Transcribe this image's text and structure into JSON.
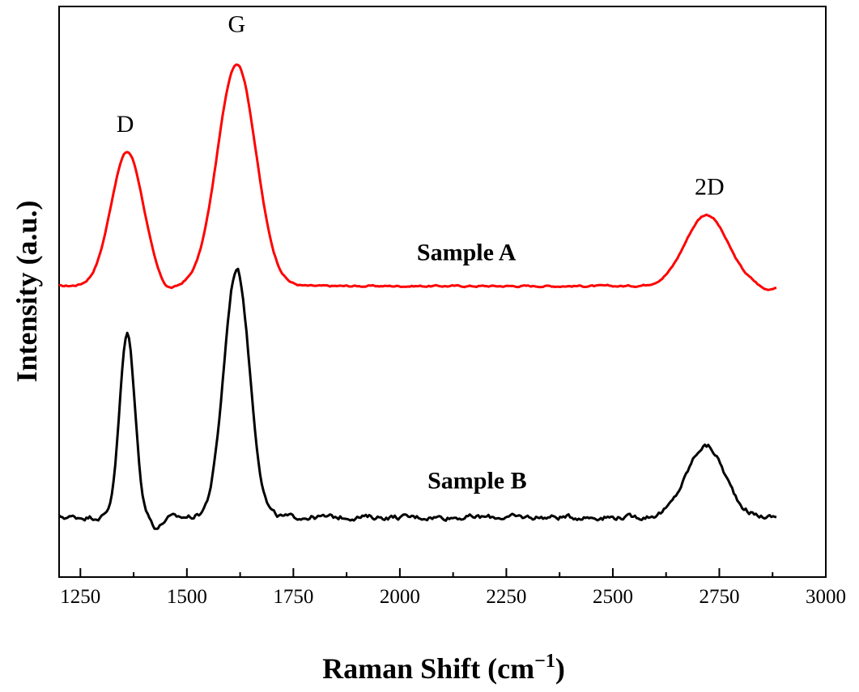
{
  "chart_data": {
    "type": "line",
    "title": "",
    "xlabel": "Raman Shift (cm",
    "xlabel_superscript": "−1",
    "xlabel_close": ")",
    "ylabel": "Intensity (a.u.)",
    "xlim": [
      1200,
      3000
    ],
    "ylim": [
      0,
      10
    ],
    "x_ticks": [
      1250,
      1500,
      1750,
      2000,
      2250,
      2500,
      2750,
      3000
    ],
    "y_ticks": [],
    "grid": false,
    "legend": "none",
    "series": [
      {
        "name": "Sample A",
        "color": "#ff0000",
        "baseline": 5.1,
        "noise": 0.03,
        "x_range": [
          1200,
          2885
        ],
        "peaks": [
          {
            "center": 1360,
            "height": 2.35,
            "width": 38
          },
          {
            "center": 1617,
            "height": 3.9,
            "width": 45
          },
          {
            "center": 2720,
            "height": 1.25,
            "width": 50
          }
        ],
        "dips": [
          {
            "center": 1450,
            "depth": 0.12,
            "width": 20
          },
          {
            "center": 2860,
            "depth": 0.08,
            "width": 15
          }
        ]
      },
      {
        "name": "Sample B",
        "color": "#000000",
        "baseline": 1.05,
        "noise": 0.09,
        "x_range": [
          1200,
          2885
        ],
        "peaks": [
          {
            "center": 1360,
            "height": 3.2,
            "width": 18
          },
          {
            "center": 1617,
            "height": 4.35,
            "width": 30
          },
          {
            "center": 2718,
            "height": 1.25,
            "width": 45
          }
        ],
        "dips": [
          {
            "center": 1430,
            "depth": 0.18,
            "width": 12
          }
        ]
      }
    ],
    "annotations": [
      {
        "text": "D",
        "x": 1355,
        "y": 7.8,
        "kind": "peak"
      },
      {
        "text": "G",
        "x": 1617,
        "y": 9.55,
        "kind": "peak"
      },
      {
        "text": "2D",
        "x": 2727,
        "y": 6.7,
        "kind": "peak"
      },
      {
        "text": "Sample A",
        "x": 2040,
        "y": 5.55,
        "kind": "series"
      },
      {
        "text": "Sample B",
        "x": 2065,
        "y": 1.55,
        "kind": "series"
      }
    ]
  }
}
